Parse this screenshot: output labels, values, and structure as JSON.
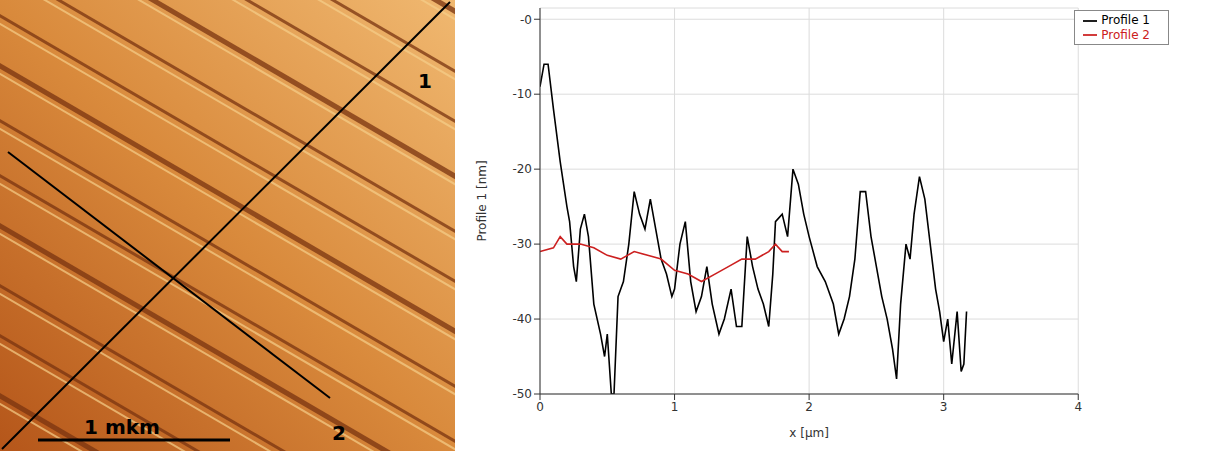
{
  "image": {
    "profile_labels": [
      "1",
      "2"
    ],
    "scale_bar": "1 mkm"
  },
  "chart_data": {
    "type": "line",
    "x_label": "x [µm]",
    "y_label": "Profile 1 [nm]",
    "xlim": [
      0,
      4
    ],
    "xticks": [
      0,
      1,
      2,
      3,
      4
    ],
    "ylim": [
      -50,
      1.5
    ],
    "yticks": [
      {
        "value": 0,
        "label": "-0"
      },
      -10,
      -20,
      -30,
      -40,
      -50
    ],
    "grid": true,
    "legend": "top-right",
    "series": [
      {
        "name": "Profile 1",
        "color": "#000000",
        "x": [
          0,
          0.03,
          0.06,
          0.1,
          0.15,
          0.2,
          0.22,
          0.25,
          0.27,
          0.3,
          0.33,
          0.36,
          0.4,
          0.45,
          0.48,
          0.5,
          0.53,
          0.55,
          0.58,
          0.62,
          0.66,
          0.7,
          0.74,
          0.78,
          0.82,
          0.86,
          0.9,
          0.94,
          0.98,
          1.0,
          1.04,
          1.08,
          1.12,
          1.16,
          1.2,
          1.24,
          1.28,
          1.33,
          1.37,
          1.42,
          1.46,
          1.5,
          1.54,
          1.58,
          1.62,
          1.66,
          1.7,
          1.73,
          1.75,
          1.8,
          1.84,
          1.88,
          1.92,
          1.96,
          2.0,
          2.06,
          2.12,
          2.18,
          2.22,
          2.26,
          2.3,
          2.34,
          2.38,
          2.42,
          2.46,
          2.5,
          2.54,
          2.58,
          2.62,
          2.65,
          2.68,
          2.72,
          2.75,
          2.78,
          2.82,
          2.86,
          2.9,
          2.94,
          2.97,
          3.0,
          3.03,
          3.06,
          3.1,
          3.13,
          3.15,
          3.17
        ],
        "values": [
          -9,
          -6,
          -6,
          -12,
          -19,
          -25,
          -27,
          -33,
          -35,
          -28,
          -26,
          -29,
          -38,
          -42,
          -45,
          -42,
          -50,
          -50,
          -37,
          -35,
          -30,
          -23,
          -26,
          -28,
          -24,
          -28,
          -32,
          -34,
          -37,
          -36,
          -30,
          -27,
          -35,
          -39,
          -37,
          -33,
          -38,
          -42,
          -40,
          -36,
          -41,
          -41,
          -29,
          -33,
          -36,
          -38,
          -41,
          -34,
          -27,
          -26,
          -29,
          -20,
          -22,
          -26,
          -29,
          -33,
          -35,
          -38,
          -42,
          -40,
          -37,
          -32,
          -23,
          -23,
          -29,
          -33,
          -37,
          -40,
          -44,
          -48,
          -38,
          -30,
          -32,
          -26,
          -21,
          -24,
          -30,
          -36,
          -39,
          -43,
          -40,
          -46,
          -39,
          -47,
          -46,
          -39
        ]
      },
      {
        "name": "Profile 2",
        "color": "#cc2020",
        "x": [
          0,
          0.1,
          0.15,
          0.2,
          0.3,
          0.4,
          0.5,
          0.6,
          0.7,
          0.8,
          0.9,
          1.0,
          1.1,
          1.2,
          1.3,
          1.4,
          1.5,
          1.6,
          1.7,
          1.75,
          1.8,
          1.85
        ],
        "values": [
          -31,
          -30.5,
          -29,
          -30,
          -30,
          -30.5,
          -31.5,
          -32,
          -31,
          -31.5,
          -32,
          -33.5,
          -34,
          -35,
          -34,
          -33,
          -32,
          -32,
          -31,
          -30,
          -31,
          -31
        ]
      }
    ]
  }
}
